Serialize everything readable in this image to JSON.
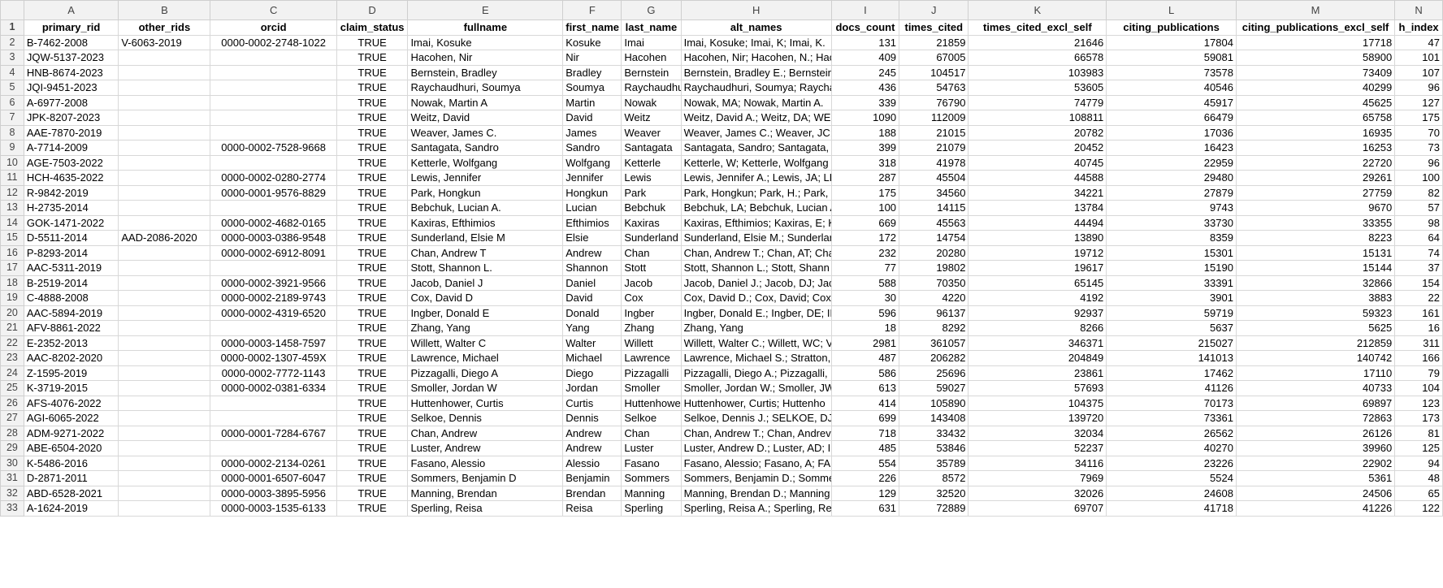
{
  "column_letters": [
    "A",
    "B",
    "C",
    "D",
    "E",
    "F",
    "G",
    "H",
    "I",
    "J",
    "K",
    "L",
    "M",
    "N"
  ],
  "header_cells": [
    "primary_rid",
    "other_rids",
    "orcid",
    "claim_status",
    "fullname",
    "first_name",
    "last_name",
    "alt_names",
    "docs_count",
    "times_cited",
    "times_cited_excl_self",
    "citing_publications",
    "citing_publications_excl_self",
    "h_index"
  ],
  "rows": [
    [
      "B-7462-2008",
      "V-6063-2019",
      "0000-0002-2748-1022",
      "TRUE",
      "Imai, Kosuke",
      "Kosuke",
      "Imai",
      "Imai, Kosuke; Imai, K; Imai, K.",
      "131",
      "21859",
      "21646",
      "17804",
      "17718",
      "47"
    ],
    [
      "JQW-5137-2023",
      "",
      "",
      "TRUE",
      "Hacohen, Nir",
      "Nir",
      "Hacohen",
      "Hacohen, Nir; Hacohen, N.; Hac",
      "409",
      "67005",
      "66578",
      "59081",
      "58900",
      "101"
    ],
    [
      "HNB-8674-2023",
      "",
      "",
      "TRUE",
      "Bernstein, Bradley",
      "Bradley",
      "Bernstein",
      "Bernstein, Bradley E.; Bernstein",
      "245",
      "104517",
      "103983",
      "73578",
      "73409",
      "107"
    ],
    [
      "JQI-9451-2023",
      "",
      "",
      "TRUE",
      "Raychaudhuri, Soumya",
      "Soumya",
      "Raychaudhu",
      "Raychaudhuri, Soumya; Raycha",
      "436",
      "54763",
      "53605",
      "40546",
      "40299",
      "96"
    ],
    [
      "A-6977-2008",
      "",
      "",
      "TRUE",
      "Nowak, Martin A",
      "Martin",
      "Nowak",
      "Nowak, MA; Nowak, Martin A.",
      "339",
      "76790",
      "74779",
      "45917",
      "45625",
      "127"
    ],
    [
      "JPK-8207-2023",
      "",
      "",
      "TRUE",
      "Weitz, David",
      "David",
      "Weitz",
      "Weitz, David A.; Weitz, DA; WEI",
      "1090",
      "112009",
      "108811",
      "66479",
      "65758",
      "175"
    ],
    [
      "AAE-7870-2019",
      "",
      "",
      "TRUE",
      "Weaver, James C.",
      "James",
      "Weaver",
      "Weaver, James C.; Weaver, JC; V",
      "188",
      "21015",
      "20782",
      "17036",
      "16935",
      "70"
    ],
    [
      "A-7714-2009",
      "",
      "0000-0002-7528-9668",
      "TRUE",
      "Santagata, Sandro",
      "Sandro",
      "Santagata",
      "Santagata, Sandro; Santagata, S",
      "399",
      "21079",
      "20452",
      "16423",
      "16253",
      "73"
    ],
    [
      "AGE-7503-2022",
      "",
      "",
      "TRUE",
      "Ketterle, Wolfgang",
      "Wolfgang",
      "Ketterle",
      "Ketterle, W; Ketterle, Wolfgang",
      "318",
      "41978",
      "40745",
      "22959",
      "22720",
      "96"
    ],
    [
      "HCH-4635-2022",
      "",
      "0000-0002-0280-2774",
      "TRUE",
      "Lewis, Jennifer",
      "Jennifer",
      "Lewis",
      "Lewis, Jennifer A.; Lewis, JA; LE",
      "287",
      "45504",
      "44588",
      "29480",
      "29261",
      "100"
    ],
    [
      "R-9842-2019",
      "",
      "0000-0001-9576-8829",
      "TRUE",
      "Park, Hongkun",
      "Hongkun",
      "Park",
      "Park, Hongkun; Park, H.; Park, I",
      "175",
      "34560",
      "34221",
      "27879",
      "27759",
      "82"
    ],
    [
      "H-2735-2014",
      "",
      "",
      "TRUE",
      "Bebchuk, Lucian A.",
      "Lucian",
      "Bebchuk",
      "Bebchuk, LA; Bebchuk, Lucian A",
      "100",
      "14115",
      "13784",
      "9743",
      "9670",
      "57"
    ],
    [
      "GOK-1471-2022",
      "",
      "0000-0002-4682-0165",
      "TRUE",
      "Kaxiras, Efthimios",
      "Efthimios",
      "Kaxiras",
      "Kaxiras, Efthimios; Kaxiras, E; K",
      "669",
      "45563",
      "44494",
      "33730",
      "33355",
      "98"
    ],
    [
      "D-5511-2014",
      "AAD-2086-2020",
      "0000-0003-0386-9548",
      "TRUE",
      "Sunderland, Elsie M",
      "Elsie",
      "Sunderland",
      "Sunderland, Elsie M.; Sunderlar",
      "172",
      "14754",
      "13890",
      "8359",
      "8223",
      "64"
    ],
    [
      "P-8293-2014",
      "",
      "0000-0002-6912-8091",
      "TRUE",
      "Chan, Andrew T",
      "Andrew",
      "Chan",
      "Chan, Andrew T.; Chan, AT; Cha",
      "232",
      "20280",
      "19712",
      "15301",
      "15131",
      "74"
    ],
    [
      "AAC-5311-2019",
      "",
      "",
      "TRUE",
      "Stott, Shannon L.",
      "Shannon",
      "Stott",
      "Stott, Shannon L.; Stott, Shann",
      "77",
      "19802",
      "19617",
      "15190",
      "15144",
      "37"
    ],
    [
      "B-2519-2014",
      "",
      "0000-0002-3921-9566",
      "TRUE",
      "Jacob, Daniel J",
      "Daniel",
      "Jacob",
      "Jacob, Daniel J.; Jacob, DJ; Jacol",
      "588",
      "70350",
      "65145",
      "33391",
      "32866",
      "154"
    ],
    [
      "C-4888-2008",
      "",
      "0000-0002-2189-9743",
      "TRUE",
      "Cox, David D",
      "David",
      "Cox",
      "Cox, David D.; Cox, David; Cox, I",
      "30",
      "4220",
      "4192",
      "3901",
      "3883",
      "22"
    ],
    [
      "AAC-5894-2019",
      "",
      "0000-0002-4319-6520",
      "TRUE",
      "Ingber, Donald E",
      "Donald",
      "Ingber",
      "Ingber, Donald E.; Ingber, DE; IN",
      "596",
      "96137",
      "92937",
      "59719",
      "59323",
      "161"
    ],
    [
      "AFV-8861-2022",
      "",
      "",
      "TRUE",
      "Zhang, Yang",
      "Yang",
      "Zhang",
      "Zhang, Yang",
      "18",
      "8292",
      "8266",
      "5637",
      "5625",
      "16"
    ],
    [
      "E-2352-2013",
      "",
      "0000-0003-1458-7597",
      "TRUE",
      "Willett, Walter C",
      "Walter",
      "Willett",
      "Willett, Walter C.; Willett, WC; V",
      "2981",
      "361057",
      "346371",
      "215027",
      "212859",
      "311"
    ],
    [
      "AAC-8202-2020",
      "",
      "0000-0002-1307-459X",
      "TRUE",
      "Lawrence, Michael",
      "Michael",
      "Lawrence",
      "Lawrence, Michael S.; Stratton,",
      "487",
      "206282",
      "204849",
      "141013",
      "140742",
      "166"
    ],
    [
      "Z-1595-2019",
      "",
      "0000-0002-7772-1143",
      "TRUE",
      "Pizzagalli, Diego A",
      "Diego",
      "Pizzagalli",
      "Pizzagalli, Diego A.; Pizzagalli, D",
      "586",
      "25696",
      "23861",
      "17462",
      "17110",
      "79"
    ],
    [
      "K-3719-2015",
      "",
      "0000-0002-0381-6334",
      "TRUE",
      "Smoller, Jordan W",
      "Jordan",
      "Smoller",
      "Smoller, Jordan W.; Smoller, JW",
      "613",
      "59027",
      "57693",
      "41126",
      "40733",
      "104"
    ],
    [
      "AFS-4076-2022",
      "",
      "",
      "TRUE",
      "Huttenhower, Curtis",
      "Curtis",
      "Huttenhowe",
      "Huttenhower, Curtis; Huttenho",
      "414",
      "105890",
      "104375",
      "70173",
      "69897",
      "123"
    ],
    [
      "AGI-6065-2022",
      "",
      "",
      "TRUE",
      "Selkoe, Dennis",
      "Dennis",
      "Selkoe",
      "Selkoe, Dennis J.; SELKOE, DJ; S",
      "699",
      "143408",
      "139720",
      "73361",
      "72863",
      "173"
    ],
    [
      "ADM-9271-2022",
      "",
      "0000-0001-7284-6767",
      "TRUE",
      "Chan, Andrew",
      "Andrew",
      "Chan",
      "Chan, Andrew T.; Chan, Andrev",
      "718",
      "33432",
      "32034",
      "26562",
      "26126",
      "81"
    ],
    [
      "ABE-6504-2020",
      "",
      "",
      "TRUE",
      "Luster, Andrew",
      "Andrew",
      "Luster",
      "Luster, Andrew D.; Luster, AD; I",
      "485",
      "53846",
      "52237",
      "40270",
      "39960",
      "125"
    ],
    [
      "K-5486-2016",
      "",
      "0000-0002-2134-0261",
      "TRUE",
      "Fasano, Alessio",
      "Alessio",
      "Fasano",
      "Fasano, Alessio; Fasano, A; FAS",
      "554",
      "35789",
      "34116",
      "23226",
      "22902",
      "94"
    ],
    [
      "D-2871-2011",
      "",
      "0000-0001-6507-6047",
      "TRUE",
      "Sommers, Benjamin D",
      "Benjamin",
      "Sommers",
      "Sommers, Benjamin D.; Somme",
      "226",
      "8572",
      "7969",
      "5524",
      "5361",
      "48"
    ],
    [
      "ABD-6528-2021",
      "",
      "0000-0003-3895-5956",
      "TRUE",
      "Manning, Brendan",
      "Brendan",
      "Manning",
      "Manning, Brendan D.; Manning",
      "129",
      "32520",
      "32026",
      "24608",
      "24506",
      "65"
    ],
    [
      "A-1624-2019",
      "",
      "0000-0003-1535-6133",
      "TRUE",
      "Sperling, Reisa",
      "Reisa",
      "Sperling",
      "Sperling, Reisa A.; Sperling, Reis",
      "631",
      "72889",
      "69707",
      "41718",
      "41226",
      "122"
    ]
  ]
}
